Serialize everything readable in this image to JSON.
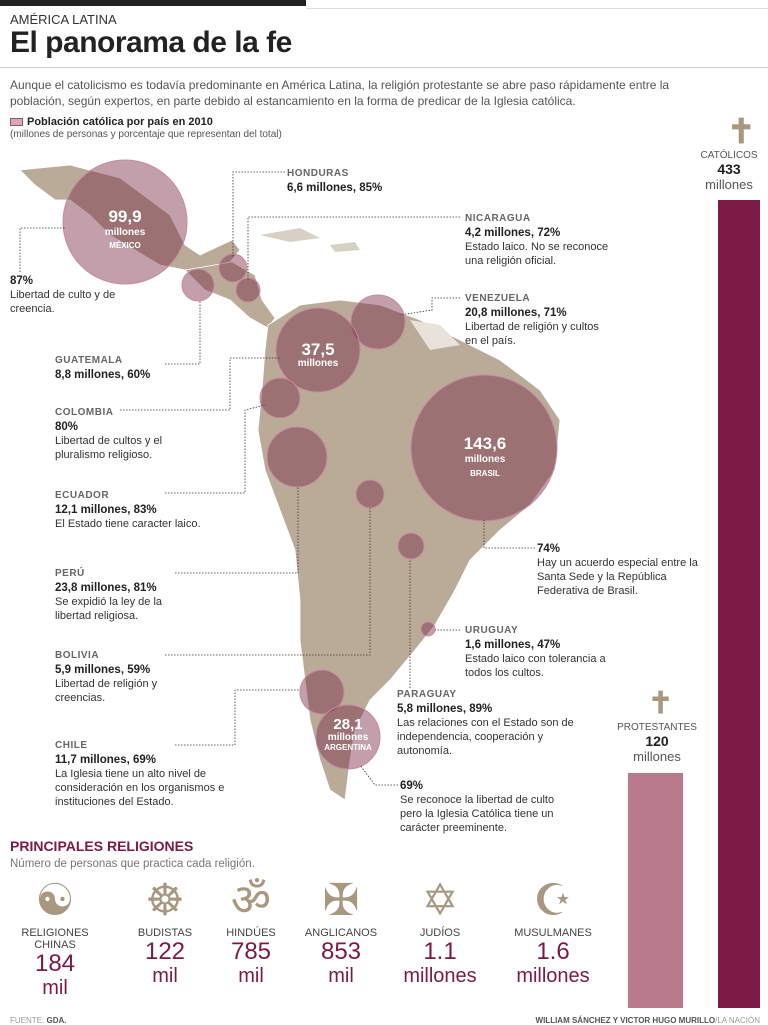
{
  "header": {
    "kicker": "AMÉRICA LATINA",
    "title": "El panorama de la fe",
    "intro": "Aunque el catolicismo es todavía predominante en América Latina, la religión protestante se abre paso rápidamente entre la población, según expertos, en parte debido al estancamiento en la forma de predicar de la Iglesia católica."
  },
  "legend": {
    "title": "Población católica por país en 2010",
    "subtitle": "(millones de personas y porcentaje que representan del total)"
  },
  "circles": {
    "mexico": {
      "value": "99,9",
      "unit": "millones",
      "name": "MÉXICO"
    },
    "colombia": {
      "value": "37,5",
      "unit": "millones"
    },
    "brasil": {
      "value": "143,6",
      "unit": "millones",
      "name": "BRASIL"
    },
    "argentina": {
      "value": "28,1",
      "unit": "millones",
      "name": "ARGENTINA"
    }
  },
  "countries": {
    "mexico": {
      "value": "87%",
      "text": "Libertad de culto y de creencia."
    },
    "honduras": {
      "name": "HONDURAS",
      "value": "6,6 millones, 85%"
    },
    "nicaragua": {
      "name": "NICARAGUA",
      "value": "4,2 millones, 72%",
      "text": "Estado laico. No se reconoce una religión oficial."
    },
    "venezuela": {
      "name": "VENEZUELA",
      "value": "20,8 millones, 71%",
      "text": "Libertad de religión y cultos en el país."
    },
    "guatemala": {
      "name": "GUATEMALA",
      "value": "8,8 millones, 60%"
    },
    "colombia": {
      "name": "COLOMBIA",
      "value": "80%",
      "text": "Libertad de cultos y el pluralismo religioso."
    },
    "ecuador": {
      "name": "ECUADOR",
      "value": "12,1 millones, 83%",
      "text": "El Estado tiene caracter laico."
    },
    "brasil": {
      "value": "74%",
      "text": "Hay un acuerdo especial entre la Santa Sede y la República Federativa de Brasil."
    },
    "peru": {
      "name": "PERÚ",
      "value": "23,8 millones, 81%",
      "text": "Se expidió la ley de la libertad religiosa."
    },
    "uruguay": {
      "name": "URUGUAY",
      "value": "1,6 millones, 47%",
      "text": "Estado laico con tolerancia a todos los cultos."
    },
    "bolivia": {
      "name": "BOLIVIA",
      "value": "5,9 millones, 59%",
      "text": "Libertad de religión y creencias."
    },
    "paraguay": {
      "name": "PARAGUAY",
      "value": "5,8 millones, 89%",
      "text": "Las relaciones con el Estado son de independencia, cooperación y autonomía."
    },
    "chile": {
      "name": "CHILE",
      "value": "11,7 millones, 69%",
      "text": "La Iglesia tiene un alto nivel de consideración en los organismos e instituciones del Estado."
    },
    "argentina": {
      "value": "69%",
      "text": "Se reconoce la libertad de culto pero la Iglesia Católica tiene un carácter preeminente."
    }
  },
  "bars": {
    "catolicos": {
      "label": "CATÓLICOS",
      "value": "433",
      "unit": "millones",
      "amount": 433,
      "color": "#7b1a45"
    },
    "protestantes": {
      "label": "PROTESTANTES",
      "value": "120",
      "unit": "millones",
      "amount": 120,
      "color": "#b97a8c"
    }
  },
  "religions": {
    "title": "PRINCIPALES RELIGIONES",
    "subtitle": "Número de personas que practica cada religión.",
    "items": [
      {
        "name": "RELIGIONES CHINAS",
        "value": "184",
        "unit": "mil",
        "icon": "yin-yang-icon"
      },
      {
        "name": "BUDISTAS",
        "value": "122",
        "unit": "mil",
        "icon": "dharma-wheel-icon"
      },
      {
        "name": "HINDÚES",
        "value": "785",
        "unit": "mil",
        "icon": "om-icon"
      },
      {
        "name": "ANGLICANOS",
        "value": "853",
        "unit": "mil",
        "icon": "cross-icon"
      },
      {
        "name": "JUDÍOS",
        "value": "1.1",
        "unit": "millones",
        "icon": "star-of-david-icon"
      },
      {
        "name": "MUSULMANES",
        "value": "1.6",
        "unit": "millones",
        "icon": "crescent-star-icon"
      }
    ]
  },
  "footer": {
    "source_label": "FUENTE:",
    "source": "GDA.",
    "credits": "WILLIAM SÁNCHEZ Y VICTOR HUGO MURILLO",
    "outlet": "/LA NACIÓN"
  }
}
